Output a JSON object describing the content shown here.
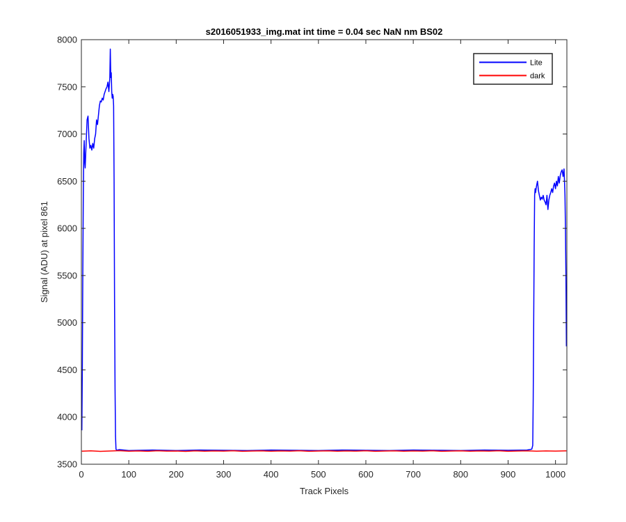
{
  "chart_data": {
    "type": "line",
    "title": "s2016051933_img.mat int time = 0.04 sec  NaN nm BS02",
    "xlabel": "Track Pixels",
    "ylabel": "Signal (ADU) at pixel 861",
    "xlim": [
      0,
      1024
    ],
    "ylim": [
      3500,
      8000
    ],
    "xticks": [
      0,
      100,
      200,
      300,
      400,
      500,
      600,
      700,
      800,
      900,
      1000
    ],
    "yticks": [
      3500,
      4000,
      4500,
      5000,
      5500,
      6000,
      6500,
      7000,
      7500,
      8000
    ],
    "grid": false,
    "legend_position": "top-right",
    "series": [
      {
        "name": "Lite",
        "color": "#0000ff",
        "x": [
          1,
          2,
          3,
          4,
          5,
          6,
          7,
          8,
          10,
          12,
          14,
          16,
          18,
          20,
          22,
          24,
          26,
          28,
          30,
          32,
          34,
          36,
          38,
          40,
          42,
          44,
          46,
          48,
          50,
          52,
          54,
          56,
          58,
          60,
          61,
          62,
          63,
          64,
          65,
          66,
          67,
          68,
          69,
          70,
          71,
          72,
          73,
          74,
          76,
          80,
          100,
          150,
          200,
          250,
          300,
          350,
          400,
          450,
          500,
          550,
          600,
          650,
          700,
          750,
          800,
          850,
          900,
          940,
          950,
          952,
          953,
          954,
          955,
          956,
          957,
          958,
          960,
          962,
          964,
          966,
          968,
          970,
          972,
          974,
          976,
          978,
          980,
          982,
          984,
          986,
          988,
          990,
          992,
          994,
          996,
          998,
          1000,
          1002,
          1004,
          1006,
          1008,
          1010,
          1012,
          1014,
          1016,
          1018,
          1019,
          1020,
          1021,
          1022,
          1023
        ],
        "y": [
          3860,
          4500,
          5500,
          6300,
          6800,
          6930,
          6700,
          6640,
          6900,
          7150,
          7190,
          6950,
          6850,
          6880,
          6830,
          6900,
          6850,
          6950,
          7000,
          7150,
          7100,
          7200,
          7300,
          7350,
          7340,
          7380,
          7360,
          7420,
          7450,
          7480,
          7500,
          7550,
          7450,
          7600,
          7900,
          7600,
          7650,
          7450,
          7380,
          7420,
          7400,
          7300,
          6500,
          5200,
          4300,
          3800,
          3660,
          3650,
          3650,
          3655,
          3645,
          3650,
          3645,
          3650,
          3648,
          3645,
          3650,
          3648,
          3645,
          3650,
          3648,
          3645,
          3650,
          3648,
          3645,
          3650,
          3648,
          3650,
          3660,
          3700,
          4200,
          5000,
          5800,
          6350,
          6420,
          6380,
          6450,
          6500,
          6400,
          6350,
          6300,
          6330,
          6310,
          6350,
          6300,
          6280,
          6250,
          6350,
          6200,
          6300,
          6350,
          6380,
          6420,
          6380,
          6450,
          6480,
          6420,
          6500,
          6450,
          6550,
          6480,
          6560,
          6600,
          6620,
          6550,
          6630,
          6500,
          6350,
          6000,
          5500,
          4750
        ]
      },
      {
        "name": "dark",
        "color": "#ff0000",
        "x": [
          1,
          20,
          40,
          60,
          80,
          100,
          120,
          140,
          160,
          180,
          200,
          220,
          240,
          260,
          280,
          300,
          320,
          340,
          360,
          380,
          400,
          420,
          440,
          460,
          480,
          500,
          520,
          540,
          560,
          580,
          600,
          620,
          640,
          660,
          680,
          700,
          720,
          740,
          760,
          780,
          800,
          820,
          840,
          860,
          880,
          900,
          920,
          940,
          960,
          980,
          1000,
          1023
        ],
        "y": [
          3638,
          3642,
          3636,
          3640,
          3644,
          3638,
          3641,
          3637,
          3643,
          3639,
          3640,
          3636,
          3642,
          3638,
          3641,
          3639,
          3643,
          3637,
          3640,
          3642,
          3638,
          3641,
          3639,
          3643,
          3637,
          3640,
          3642,
          3638,
          3641,
          3639,
          3643,
          3637,
          3640,
          3642,
          3638,
          3641,
          3639,
          3643,
          3637,
          3640,
          3642,
          3638,
          3641,
          3639,
          3643,
          3637,
          3640,
          3642,
          3638,
          3641,
          3639,
          3642
        ]
      }
    ]
  }
}
